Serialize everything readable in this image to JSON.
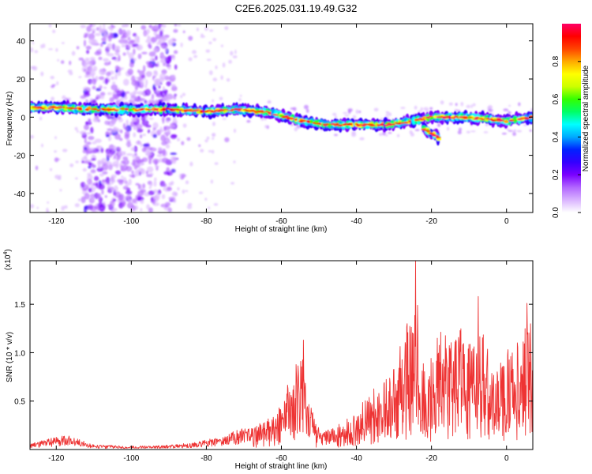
{
  "figure": {
    "title": "C2E6.2025.031.19.49.G32"
  },
  "chart_data": [
    {
      "type": "heatmap",
      "xlabel": "Height of straight line (km)",
      "ylabel": "Frequency (Hz)",
      "xlim": [
        -127,
        7
      ],
      "ylim": [
        -50,
        49
      ],
      "xticks": [
        -120,
        -100,
        -80,
        -60,
        -40,
        -20,
        0
      ],
      "xtick_labels": [
        "-120",
        "-100",
        "-80",
        "-60",
        "-40",
        "-20",
        "0"
      ],
      "yticks": [
        40,
        20,
        0,
        -20,
        -40
      ],
      "ytick_labels": [
        "40",
        "20",
        "0",
        "-20",
        "-40"
      ],
      "colorbar": {
        "label": "Normalized spectral amplitude",
        "range": [
          0,
          1
        ],
        "ticks": [
          0,
          0.2,
          0.4,
          0.6,
          0.8
        ],
        "tick_labels": [
          "0.0",
          "0.2",
          "0.4",
          "0.6",
          "0.8"
        ],
        "colors": [
          "#ffffff",
          "#d9b3ff",
          "#b266ff",
          "#7a00ff",
          "#3300ff",
          "#0022ff",
          "#00aaff",
          "#00ffff",
          "#00ff66",
          "#33ff00",
          "#ccff00",
          "#ffff00",
          "#ffaa00",
          "#ff4400",
          "#ff0000",
          "#ff0066"
        ]
      },
      "ridge": {
        "x": [
          -127,
          -118,
          -110,
          -100,
          -90,
          -80,
          -70,
          -62,
          -55,
          -48,
          -40,
          -32,
          -25,
          -20,
          -12,
          -5,
          0,
          7
        ],
        "y": [
          5,
          5,
          4,
          4,
          4,
          3,
          4,
          2,
          -2,
          -4,
          -4,
          -4,
          -2,
          0,
          0,
          -1,
          -2,
          0
        ]
      },
      "side_branch": {
        "x": [
          -22,
          -18
        ],
        "y": [
          -6,
          -11
        ]
      },
      "noise_band": [
        -113,
        -88
      ],
      "grid": false
    },
    {
      "type": "line",
      "xlabel": "Height of straight line (km)",
      "ylabel": "SNR (10 * v/v)",
      "exponent_label": "(x10",
      "exponent_power": "4",
      "exponent_close": ")",
      "xlim": [
        -127,
        7
      ],
      "ylim": [
        0,
        19500
      ],
      "xticks": [
        -120,
        -100,
        -80,
        -60,
        -40,
        -20,
        0
      ],
      "xtick_labels": [
        "-120",
        "-100",
        "-80",
        "-60",
        "-40",
        "-20",
        "0"
      ],
      "yticks": [
        5000,
        10000,
        15000
      ],
      "ytick_labels": [
        "0.5",
        "1.0",
        "1.5"
      ],
      "color": "#ee3333",
      "envelope": {
        "x": [
          -127,
          -122,
          -118,
          -115,
          -110,
          -100,
          -90,
          -82,
          -78,
          -72,
          -66,
          -62,
          -60,
          -57,
          -55,
          -53,
          -51,
          -49,
          -46,
          -44,
          -40,
          -37,
          -34,
          -31,
          -29,
          -27,
          -25,
          -24,
          -23,
          -21,
          -19,
          -17,
          -15,
          -12,
          -10,
          -8,
          -6,
          -4,
          -2,
          0,
          2,
          4,
          5,
          7
        ],
        "y": [
          600,
          1100,
          1600,
          1200,
          500,
          350,
          450,
          800,
          1200,
          2000,
          2700,
          3800,
          4800,
          8200,
          11000,
          6000,
          2800,
          1800,
          2300,
          2800,
          3800,
          5800,
          7200,
          7500,
          10000,
          12500,
          15500,
          18500,
          11000,
          9000,
          10500,
          13000,
          11500,
          13000,
          12000,
          11000,
          12500,
          8000,
          9000,
          11000,
          11000,
          13000,
          14000,
          13500
        ]
      },
      "peaks": [
        {
          "x": -24.2,
          "y": 19500
        },
        {
          "x": -54.1,
          "y": 11300
        },
        {
          "x": -7.5,
          "y": 15800
        },
        {
          "x": 5.5,
          "y": 15100
        },
        {
          "x": -26.5,
          "y": 13000
        },
        {
          "x": -18.5,
          "y": 11500
        }
      ],
      "grid": false
    }
  ]
}
